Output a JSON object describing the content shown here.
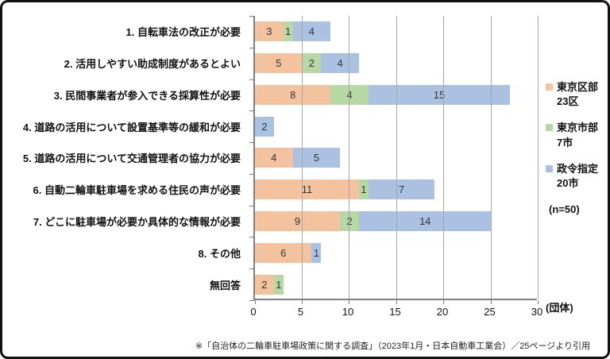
{
  "chart_data": {
    "type": "bar",
    "orientation": "horizontal",
    "stacked": true,
    "categories": [
      "1. 自転車法の改正が必要",
      "2. 活用しやすい助成制度があるとよい",
      "3. 民間事業者が参入できる採算性が必要",
      "4. 道路の活用について設置基準等の緩和が必要",
      "5. 道路の活用について交通管理者の協力が必要",
      "6. 自動二輪車駐車場を求める住民の声が必要",
      "7. どこに駐車場が必要か具体的な情報が必要",
      "8. その他",
      "無回答"
    ],
    "series": [
      {
        "name": "東京区部23区",
        "color": "#F3C3A0",
        "values": [
          3,
          5,
          8,
          0,
          4,
          11,
          9,
          6,
          2
        ]
      },
      {
        "name": "東京市部7市",
        "color": "#B7D8A4",
        "values": [
          1,
          2,
          4,
          0,
          0,
          1,
          2,
          0,
          1
        ]
      },
      {
        "name": "政令指定20市",
        "color": "#ABC1E1",
        "values": [
          4,
          4,
          15,
          2,
          5,
          7,
          14,
          1,
          0
        ]
      }
    ],
    "legend_labels": [
      [
        "東京区部",
        "23区"
      ],
      [
        "東京市部",
        "7市"
      ],
      [
        "政令指定",
        "20市"
      ]
    ],
    "legend_note": "(n=50)",
    "unit_label": "(団体)",
    "xlim": [
      0,
      30
    ],
    "xticks": [
      0,
      5,
      10,
      15,
      20,
      25,
      30
    ],
    "grid": true,
    "legend_position": "right"
  },
  "footnote": "※「自治体の二輪車駐車場政策に関する調査」（2023年1月・日本自動車工業会）／25ページより引用"
}
